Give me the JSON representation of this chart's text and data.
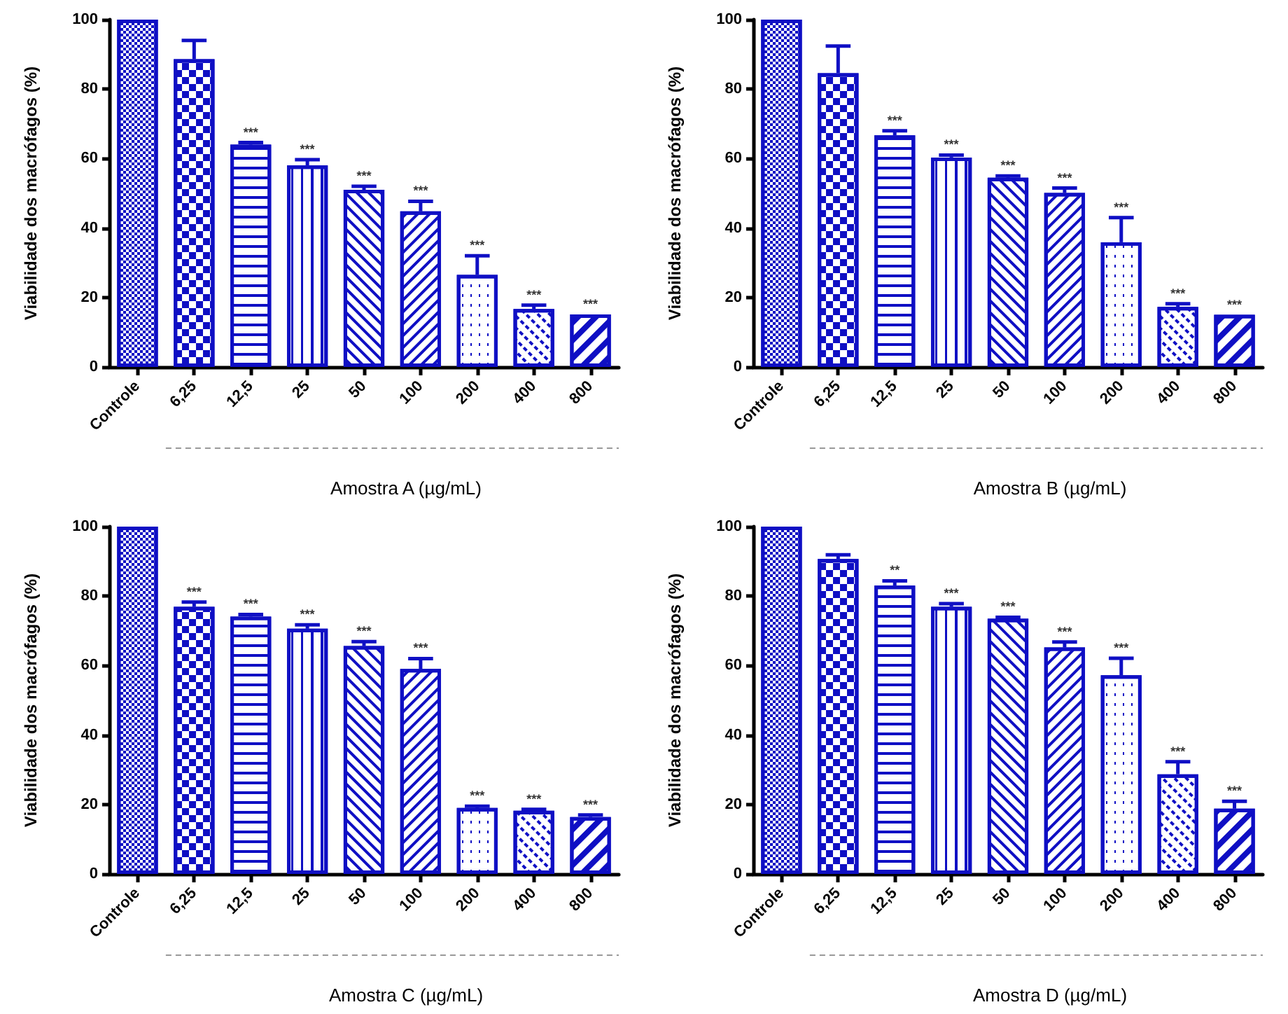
{
  "chart_data": [
    {
      "type": "bar",
      "xlabel": "Amostra A (µg/mL)",
      "ylabel": "Viabilidade dos macrófagos (%)",
      "categories": [
        "Controle",
        "6,25",
        "12,5",
        "25",
        "50",
        "100",
        "200",
        "400",
        "800"
      ],
      "color": "#0f0fc4",
      "values": [
        100,
        88.6,
        64,
        58,
        51,
        44.8,
        26.5,
        16.7,
        15.1
      ],
      "errors": [
        null,
        [
          88.6,
          94
        ],
        [
          64,
          64.6
        ],
        [
          58,
          59.7
        ],
        [
          51,
          52
        ],
        [
          44.8,
          47.7
        ],
        [
          26.5,
          32
        ],
        [
          16.7,
          17.8
        ],
        null
      ],
      "ylim": [
        0,
        100
      ],
      "yticks": [
        0,
        20,
        40,
        60,
        80,
        100
      ],
      "grid": false,
      "annotations": [
        {
          "text": "***",
          "x": "12,5",
          "y": 64.6
        },
        {
          "text": "***",
          "x": "25",
          "y": 59.7
        },
        {
          "text": "***",
          "x": "50",
          "y": 52
        },
        {
          "text": "***",
          "x": "100",
          "y": 47.7
        },
        {
          "text": "***",
          "x": "200",
          "y": 32
        },
        {
          "text": "***",
          "x": "400",
          "y": 17.8
        },
        {
          "text": "***",
          "x": "800",
          "y": 15.1
        }
      ]
    },
    {
      "type": "bar",
      "xlabel": "Amostra B (µg/mL)",
      "ylabel": "Viabilidade dos macrófagos (%)",
      "categories": [
        "Controle",
        "6,25",
        "12,5",
        "25",
        "50",
        "100",
        "200",
        "400",
        "800"
      ],
      "color": "#0f0fc4",
      "values": [
        100,
        84.6,
        66.7,
        60.3,
        54.5,
        50.1,
        35.9,
        17.3,
        15
      ],
      "errors": [
        null,
        [
          84.6,
          92.4
        ],
        [
          66.7,
          68
        ],
        [
          60.3,
          61
        ],
        [
          54.5,
          55
        ],
        [
          50.1,
          51.5
        ],
        [
          35.9,
          43
        ],
        [
          17.3,
          18.2
        ],
        null
      ],
      "ylim": [
        0,
        100
      ],
      "yticks": [
        0,
        20,
        40,
        60,
        80,
        100
      ],
      "grid": false,
      "annotations": [
        {
          "text": "***",
          "x": "12,5",
          "y": 68
        },
        {
          "text": "***",
          "x": "25",
          "y": 61
        },
        {
          "text": "***",
          "x": "50",
          "y": 55
        },
        {
          "text": "***",
          "x": "100",
          "y": 51.5
        },
        {
          "text": "***",
          "x": "200",
          "y": 43
        },
        {
          "text": "***",
          "x": "400",
          "y": 18.2
        },
        {
          "text": "***",
          "x": "800",
          "y": 15
        }
      ]
    },
    {
      "type": "bar",
      "xlabel": "Amostra C (µg/mL)",
      "ylabel": "Viabilidade dos macrófagos (%)",
      "categories": [
        "Controle",
        "6,25",
        "12,5",
        "25",
        "50",
        "100",
        "200",
        "400",
        "800"
      ],
      "color": "#0f0fc4",
      "values": [
        100,
        76.9,
        74.1,
        70.6,
        65.6,
        59,
        19,
        18.2,
        16.4
      ],
      "errors": [
        null,
        [
          76.9,
          78.3
        ],
        [
          74.1,
          74.7
        ],
        [
          70.6,
          71.7
        ],
        [
          65.6,
          66.9
        ],
        [
          59,
          62
        ],
        [
          19,
          19.5
        ],
        [
          18.2,
          18.6
        ],
        [
          16.4,
          17
        ]
      ],
      "ylim": [
        0,
        100
      ],
      "yticks": [
        0,
        20,
        40,
        60,
        80,
        100
      ],
      "grid": false,
      "annotations": [
        {
          "text": "***",
          "x": "6,25",
          "y": 78.3
        },
        {
          "text": "***",
          "x": "12,5",
          "y": 74.7
        },
        {
          "text": "***",
          "x": "25",
          "y": 71.7
        },
        {
          "text": "***",
          "x": "50",
          "y": 66.9
        },
        {
          "text": "***",
          "x": "100",
          "y": 62
        },
        {
          "text": "***",
          "x": "200",
          "y": 19.5
        },
        {
          "text": "***",
          "x": "400",
          "y": 18.6
        },
        {
          "text": "***",
          "x": "800",
          "y": 17
        }
      ]
    },
    {
      "type": "bar",
      "xlabel": "Amostra D (µg/mL)",
      "ylabel": "Viabilidade dos macrófagos (%)",
      "categories": [
        "Controle",
        "6,25",
        "12,5",
        "25",
        "50",
        "100",
        "200",
        "400",
        "800"
      ],
      "color": "#0f0fc4",
      "values": [
        100,
        90.7,
        83,
        76.9,
        73.5,
        65.2,
        57.2,
        28.7,
        18.8
      ],
      "errors": [
        null,
        [
          90.7,
          91.9
        ],
        [
          83,
          84.4
        ],
        [
          76.9,
          77.8
        ],
        [
          73.5,
          73.9
        ],
        [
          65.2,
          66.8
        ],
        [
          57.2,
          62.1
        ],
        [
          28.7,
          32.3
        ],
        [
          18.8,
          20.9
        ]
      ],
      "ylim": [
        0,
        100
      ],
      "yticks": [
        0,
        20,
        40,
        60,
        80,
        100
      ],
      "grid": false,
      "annotations": [
        {
          "text": "**",
          "x": "12,5",
          "y": 84.4
        },
        {
          "text": "***",
          "x": "25",
          "y": 77.8
        },
        {
          "text": "***",
          "x": "50",
          "y": 73.9
        },
        {
          "text": "***",
          "x": "100",
          "y": 66.8
        },
        {
          "text": "***",
          "x": "200",
          "y": 62.1
        },
        {
          "text": "***",
          "x": "400",
          "y": 32.3
        },
        {
          "text": "***",
          "x": "800",
          "y": 20.9
        }
      ]
    }
  ]
}
